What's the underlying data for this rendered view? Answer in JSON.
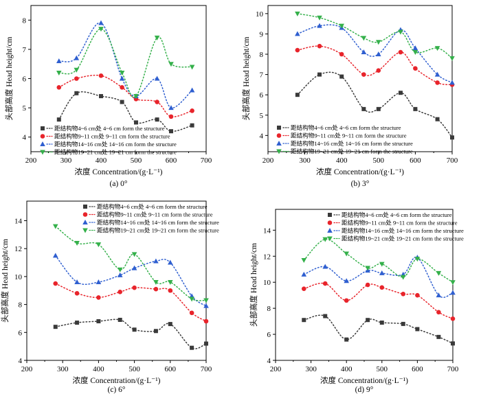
{
  "chart_data": [
    {
      "type": "scatter",
      "caption": "(a) 0°",
      "xlabel": "浓度 Concentration/(g·L⁻¹)",
      "ylabel": "头部高度 Head height/cm",
      "xlim": [
        200,
        700
      ],
      "ylim": [
        3.5,
        8.5
      ],
      "xticks": [
        200,
        300,
        400,
        500,
        600,
        700
      ],
      "yticks": [
        4,
        5,
        6,
        7,
        8
      ],
      "legend_position": "bottom-left",
      "series": [
        {
          "name": "距结构物4~6 cm处 4~6 cm form the structure",
          "color": "#3a3a3a",
          "marker": "square",
          "x": [
            280,
            330,
            400,
            460,
            500,
            560,
            600,
            660
          ],
          "y": [
            4.6,
            5.5,
            5.4,
            5.2,
            4.5,
            4.6,
            4.2,
            4.4
          ]
        },
        {
          "name": "距结构物9~11 cm处 9~11 cm form the structure",
          "color": "#e8242b",
          "marker": "circle",
          "x": [
            280,
            330,
            400,
            460,
            500,
            560,
            600,
            660
          ],
          "y": [
            5.7,
            6.0,
            6.1,
            5.7,
            5.3,
            5.2,
            4.7,
            4.9
          ]
        },
        {
          "name": "距结构物14~16 cm处 14~16 cm form the structure",
          "color": "#2f5fd0",
          "marker": "triangle-up",
          "x": [
            280,
            330,
            400,
            460,
            500,
            560,
            600,
            660
          ],
          "y": [
            6.6,
            6.7,
            7.9,
            6.0,
            5.4,
            6.0,
            5.0,
            5.6
          ]
        },
        {
          "name": "距结构物19~21 cm处 19~21 cm form the structure",
          "color": "#34b04a",
          "marker": "triangle-down",
          "x": [
            280,
            330,
            400,
            460,
            500,
            560,
            600,
            660
          ],
          "y": [
            6.2,
            6.3,
            7.7,
            6.2,
            5.4,
            7.4,
            6.5,
            6.4
          ]
        }
      ]
    },
    {
      "type": "scatter",
      "caption": "(b) 3°",
      "xlabel": "浓度 Concentration/(g·L⁻¹)",
      "ylabel": "头部高度 Head height/cm",
      "xlim": [
        200,
        700
      ],
      "ylim": [
        3.2,
        10.4
      ],
      "xticks": [
        200,
        300,
        400,
        500,
        600,
        700
      ],
      "yticks": [
        4,
        5,
        6,
        7,
        8,
        9,
        10
      ],
      "legend_position": "bottom-left",
      "series": [
        {
          "name": "距结构物4~6 cm处 4~6 cm form the structure",
          "color": "#3a3a3a",
          "marker": "square",
          "x": [
            280,
            340,
            400,
            460,
            500,
            560,
            600,
            660,
            700
          ],
          "y": [
            6.0,
            7.0,
            6.9,
            5.3,
            5.3,
            6.1,
            5.3,
            4.8,
            3.9
          ]
        },
        {
          "name": "距结构物9~11 cm处 9~11 cm form the structure",
          "color": "#e8242b",
          "marker": "circle",
          "x": [
            280,
            340,
            400,
            460,
            500,
            560,
            600,
            660,
            700
          ],
          "y": [
            8.2,
            8.4,
            8.0,
            7.0,
            7.2,
            8.1,
            7.3,
            6.6,
            6.5
          ]
        },
        {
          "name": "距结构物14~16 cm处 14~16 cm form the structure",
          "color": "#2f5fd0",
          "marker": "triangle-up",
          "x": [
            280,
            340,
            400,
            460,
            500,
            560,
            600,
            660,
            700
          ],
          "y": [
            9.0,
            9.4,
            9.3,
            8.1,
            8.0,
            9.2,
            8.3,
            7.0,
            6.6
          ]
        },
        {
          "name": "距结构物19~21 cm处 19~21 cm form the structure",
          "color": "#34b04a",
          "marker": "triangle-down",
          "x": [
            280,
            340,
            400,
            460,
            500,
            560,
            600,
            660,
            700
          ],
          "y": [
            10.0,
            9.8,
            9.4,
            8.8,
            8.6,
            9.1,
            8.1,
            8.3,
            7.8
          ]
        }
      ]
    },
    {
      "type": "scatter",
      "caption": "(c) 6°",
      "xlabel": "浓度 Concentration/(g·L⁻¹)",
      "ylabel": "头部高度 Head height/cm",
      "xlim": [
        200,
        700
      ],
      "ylim": [
        4,
        15.4
      ],
      "xticks": [
        200,
        300,
        400,
        500,
        600,
        700
      ],
      "yticks": [
        4,
        6,
        8,
        10,
        12,
        14
      ],
      "legend_position": "top",
      "series": [
        {
          "name": "距结构物4~6 cm处 4~6 cm form the structure",
          "color": "#3a3a3a",
          "marker": "square",
          "x": [
            280,
            340,
            400,
            460,
            500,
            560,
            600,
            660,
            700
          ],
          "y": [
            6.4,
            6.7,
            6.8,
            6.9,
            6.2,
            6.1,
            6.6,
            4.9,
            5.2
          ]
        },
        {
          "name": "距结构物9~11 cm处 9~11 cm form the structure",
          "color": "#e8242b",
          "marker": "circle",
          "x": [
            280,
            340,
            400,
            460,
            500,
            560,
            600,
            660,
            700
          ],
          "y": [
            9.5,
            8.8,
            8.5,
            8.9,
            9.2,
            9.1,
            9.0,
            7.4,
            6.8
          ]
        },
        {
          "name": "距结构物14~16 cm处 14~16 cm form the structure",
          "color": "#2f5fd0",
          "marker": "triangle-up",
          "x": [
            280,
            340,
            400,
            460,
            500,
            560,
            600,
            660,
            700
          ],
          "y": [
            11.5,
            9.6,
            9.6,
            10.1,
            10.6,
            11.1,
            11.0,
            8.6,
            7.9
          ]
        },
        {
          "name": "距结构物19~21 cm处 19~21 cm form the structure",
          "color": "#34b04a",
          "marker": "triangle-down",
          "x": [
            280,
            340,
            400,
            460,
            500,
            560,
            600,
            660,
            700
          ],
          "y": [
            13.6,
            12.4,
            12.3,
            10.5,
            11.6,
            9.6,
            9.6,
            8.4,
            8.3
          ]
        }
      ]
    },
    {
      "type": "scatter",
      "caption": "(d) 9°",
      "xlabel": "浓度 Concentration/(g·L⁻¹)",
      "ylabel": "头部高度 Head height/cm",
      "xlim": [
        200,
        700
      ],
      "ylim": [
        4,
        15.6
      ],
      "xticks": [
        200,
        300,
        400,
        500,
        600,
        700
      ],
      "yticks": [
        4,
        6,
        8,
        10,
        12,
        14
      ],
      "legend_position": "top",
      "series": [
        {
          "name": "距结构物4~6 cm处 4~6 cm form the structure",
          "color": "#3a3a3a",
          "marker": "square",
          "x": [
            280,
            340,
            400,
            460,
            500,
            560,
            600,
            660,
            700
          ],
          "y": [
            7.1,
            7.4,
            5.6,
            7.1,
            6.9,
            6.8,
            6.4,
            5.8,
            5.3
          ]
        },
        {
          "name": "距结构物9~11 cm处 9~11 cm form the structure",
          "color": "#e8242b",
          "marker": "circle",
          "x": [
            280,
            340,
            400,
            460,
            500,
            560,
            600,
            660,
            700
          ],
          "y": [
            9.5,
            9.9,
            8.6,
            9.8,
            9.6,
            9.1,
            9.0,
            7.7,
            7.2
          ]
        },
        {
          "name": "距结构物14~16 cm处 14~16 cm form the structure",
          "color": "#2f5fd0",
          "marker": "triangle-up",
          "x": [
            280,
            340,
            400,
            460,
            500,
            560,
            600,
            660,
            700
          ],
          "y": [
            10.6,
            11.2,
            10.1,
            10.9,
            10.7,
            10.6,
            11.9,
            9.0,
            9.2
          ]
        },
        {
          "name": "距结构物19~21 cm处 19~21 cm form the structure",
          "color": "#34b04a",
          "marker": "triangle-down",
          "x": [
            280,
            340,
            400,
            460,
            500,
            560,
            600,
            660,
            700
          ],
          "y": [
            11.7,
            13.3,
            12.2,
            11.1,
            11.4,
            10.4,
            11.8,
            10.7,
            10.0
          ]
        }
      ]
    }
  ]
}
